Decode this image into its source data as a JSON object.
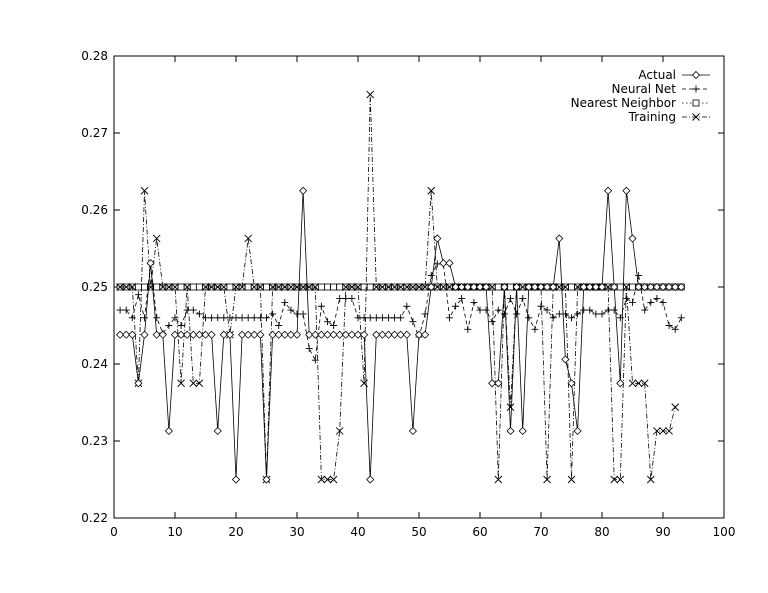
{
  "chart_data": {
    "type": "line",
    "title": "",
    "xlabel": "",
    "ylabel": "",
    "xlim": [
      0,
      100
    ],
    "ylim": [
      0.22,
      0.28
    ],
    "xticks": [
      0,
      10,
      20,
      30,
      40,
      50,
      60,
      70,
      80,
      90,
      100
    ],
    "yticks": [
      0.22,
      0.23,
      0.24,
      0.25,
      0.26,
      0.27,
      0.28
    ],
    "xtick_labels": [
      "0",
      "10",
      "20",
      "30",
      "40",
      "50",
      "60",
      "70",
      "80",
      "90",
      "100"
    ],
    "ytick_labels": [
      "0.22",
      "0.23",
      "0.24",
      "0.25",
      "0.26",
      "0.27",
      "0.28"
    ],
    "grid": false,
    "legend_position": "top-right",
    "series": [
      {
        "name": "Actual",
        "marker": "diamond",
        "dash": "solid",
        "x": [
          1,
          2,
          3,
          4,
          5,
          6,
          7,
          8,
          9,
          10,
          11,
          12,
          13,
          14,
          15,
          16,
          17,
          18,
          19,
          20,
          21,
          22,
          23,
          24,
          25,
          26,
          27,
          28,
          29,
          30,
          31,
          32,
          33,
          34,
          35,
          36,
          37,
          38,
          39,
          40,
          41,
          42,
          43,
          44,
          45,
          46,
          47,
          48,
          49,
          50,
          51,
          52,
          53,
          54,
          55,
          56,
          57,
          58,
          59,
          60,
          61,
          62,
          63,
          64,
          65,
          66,
          67,
          68,
          69,
          70,
          71,
          72,
          73,
          74,
          75,
          76,
          77,
          78,
          79,
          80,
          81,
          82,
          83,
          84,
          85,
          86,
          87,
          88,
          89,
          90,
          91,
          92,
          93
        ],
        "y": [
          0.2438,
          0.2438,
          0.2438,
          0.2375,
          0.2438,
          0.2531,
          0.2438,
          0.2438,
          0.2313,
          0.2438,
          0.2438,
          0.2438,
          0.2438,
          0.2438,
          0.2438,
          0.2438,
          0.2313,
          0.2438,
          0.2438,
          0.225,
          0.2438,
          0.2438,
          0.2438,
          0.2438,
          0.225,
          0.2438,
          0.2438,
          0.2438,
          0.2438,
          0.2438,
          0.2625,
          0.2438,
          0.2438,
          0.2438,
          0.2438,
          0.2438,
          0.2438,
          0.2438,
          0.2438,
          0.2438,
          0.2438,
          0.225,
          0.2438,
          0.2438,
          0.2438,
          0.2438,
          0.2438,
          0.2438,
          0.2313,
          0.2438,
          0.2438,
          0.25,
          0.2563,
          0.2531,
          0.2531,
          0.25,
          0.25,
          0.25,
          0.25,
          0.25,
          0.25,
          0.2375,
          0.2375,
          0.25,
          0.2313,
          0.25,
          0.2313,
          0.25,
          0.25,
          0.25,
          0.25,
          0.25,
          0.2563,
          0.2406,
          0.2375,
          0.2313,
          0.25,
          0.25,
          0.25,
          0.25,
          0.2625,
          0.25,
          0.2375,
          0.2625,
          0.2563,
          0.25,
          0.25,
          0.25,
          0.25,
          0.25,
          0.25,
          0.25,
          0.25
        ]
      },
      {
        "name": "Neural Net",
        "marker": "plus",
        "dash": "dashed",
        "x": [
          1,
          2,
          3,
          4,
          5,
          6,
          7,
          8,
          9,
          10,
          11,
          12,
          13,
          14,
          15,
          16,
          17,
          18,
          19,
          20,
          21,
          22,
          23,
          24,
          25,
          26,
          27,
          28,
          29,
          30,
          31,
          32,
          33,
          34,
          35,
          36,
          37,
          38,
          39,
          40,
          41,
          42,
          43,
          44,
          45,
          46,
          47,
          48,
          49,
          50,
          51,
          52,
          53,
          54,
          55,
          56,
          57,
          58,
          59,
          60,
          61,
          62,
          63,
          64,
          65,
          66,
          67,
          68,
          69,
          70,
          71,
          72,
          73,
          74,
          75,
          76,
          77,
          78,
          79,
          80,
          81,
          82,
          83,
          84,
          85,
          86,
          87,
          88,
          89,
          90,
          91,
          92,
          93
        ],
        "y": [
          0.247,
          0.247,
          0.246,
          0.249,
          0.246,
          0.253,
          0.246,
          0.244,
          0.245,
          0.246,
          0.245,
          0.247,
          0.247,
          0.2465,
          0.246,
          0.246,
          0.246,
          0.246,
          0.246,
          0.246,
          0.246,
          0.246,
          0.246,
          0.246,
          0.246,
          0.2465,
          0.245,
          0.248,
          0.247,
          0.2465,
          0.2465,
          0.242,
          0.2405,
          0.2475,
          0.2455,
          0.245,
          0.2485,
          0.2485,
          0.2485,
          0.246,
          0.246,
          0.246,
          0.246,
          0.246,
          0.246,
          0.246,
          0.246,
          0.2475,
          0.2455,
          0.2435,
          0.2465,
          0.2515,
          0.253,
          0.253,
          0.246,
          0.2475,
          0.2485,
          0.2445,
          0.248,
          0.247,
          0.247,
          0.2455,
          0.247,
          0.2465,
          0.2485,
          0.2465,
          0.2485,
          0.246,
          0.2445,
          0.2475,
          0.247,
          0.246,
          0.2465,
          0.2465,
          0.246,
          0.2465,
          0.247,
          0.247,
          0.2465,
          0.2465,
          0.247,
          0.247,
          0.246,
          0.2485,
          0.248,
          0.2515,
          0.247,
          0.248,
          0.2485,
          0.248,
          0.245,
          0.2445,
          0.246
        ]
      },
      {
        "name": "Nearest Neighbor",
        "marker": "square",
        "dash": "dotted",
        "x": [
          1,
          2,
          3,
          4,
          5,
          6,
          7,
          8,
          9,
          10,
          11,
          12,
          13,
          14,
          15,
          16,
          17,
          18,
          19,
          20,
          21,
          22,
          23,
          24,
          25,
          26,
          27,
          28,
          29,
          30,
          31,
          32,
          33,
          34,
          35,
          36,
          37,
          38,
          39,
          40,
          41,
          42,
          43,
          44,
          45,
          46,
          47,
          48,
          49,
          50,
          51,
          52,
          53,
          54,
          55,
          56,
          57,
          58,
          59,
          60,
          61,
          62,
          63,
          64,
          65,
          66,
          67,
          68,
          69,
          70,
          71,
          72,
          73,
          74,
          75,
          76,
          77,
          78,
          79,
          80,
          81,
          82,
          83,
          84,
          85,
          86,
          87,
          88,
          89,
          90,
          91,
          92,
          93
        ],
        "y": [
          0.25,
          0.25,
          0.25,
          0.25,
          0.25,
          0.25,
          0.25,
          0.25,
          0.25,
          0.25,
          0.25,
          0.25,
          0.25,
          0.25,
          0.25,
          0.25,
          0.25,
          0.25,
          0.25,
          0.25,
          0.25,
          0.25,
          0.25,
          0.25,
          0.25,
          0.25,
          0.25,
          0.25,
          0.25,
          0.25,
          0.25,
          0.25,
          0.25,
          0.25,
          0.25,
          0.25,
          0.25,
          0.25,
          0.25,
          0.25,
          0.25,
          0.25,
          0.25,
          0.25,
          0.25,
          0.25,
          0.25,
          0.25,
          0.25,
          0.25,
          0.25,
          0.25,
          0.25,
          0.25,
          0.25,
          0.25,
          0.25,
          0.25,
          0.25,
          0.25,
          0.25,
          0.25,
          0.25,
          0.25,
          0.25,
          0.25,
          0.25,
          0.25,
          0.25,
          0.25,
          0.25,
          0.25,
          0.25,
          0.25,
          0.25,
          0.25,
          0.25,
          0.25,
          0.25,
          0.25,
          0.25,
          0.25,
          0.25,
          0.25,
          0.25,
          0.25,
          0.25,
          0.25,
          0.25,
          0.25,
          0.25,
          0.25,
          0.25
        ]
      },
      {
        "name": "Training",
        "marker": "cross",
        "dash": "dashdot",
        "x": [
          1,
          2,
          3,
          4,
          5,
          6,
          7,
          8,
          9,
          10,
          11,
          12,
          13,
          14,
          15,
          16,
          17,
          18,
          19,
          20,
          21,
          22,
          23,
          24,
          25,
          26,
          27,
          28,
          29,
          30,
          31,
          32,
          33,
          34,
          35,
          36,
          37,
          38,
          39,
          40,
          41,
          42,
          43,
          44,
          45,
          46,
          47,
          48,
          49,
          50,
          51,
          52,
          53,
          54,
          55,
          56,
          57,
          58,
          59,
          60,
          61,
          62,
          63,
          64,
          65,
          66,
          67,
          68,
          69,
          70,
          71,
          72,
          73,
          74,
          75,
          76,
          77,
          78,
          79,
          80,
          81,
          82,
          83,
          84,
          85,
          86,
          87,
          88,
          89,
          90,
          91,
          92
        ],
        "y": [
          0.25,
          0.25,
          0.25,
          0.2375,
          0.2625,
          0.25,
          0.2563,
          0.25,
          0.25,
          0.25,
          0.2375,
          0.25,
          0.2375,
          0.2375,
          0.25,
          0.25,
          0.25,
          0.25,
          0.2438,
          0.25,
          0.25,
          0.2563,
          0.25,
          0.25,
          0.225,
          0.25,
          0.25,
          0.25,
          0.25,
          0.25,
          0.25,
          0.25,
          0.25,
          0.225,
          0.225,
          0.225,
          0.2313,
          0.25,
          0.25,
          0.25,
          0.2375,
          0.275,
          0.25,
          0.25,
          0.25,
          0.25,
          0.25,
          0.25,
          0.25,
          0.25,
          0.25,
          0.2625,
          0.25,
          0.25,
          0.25,
          0.25,
          0.25,
          0.25,
          0.25,
          0.25,
          0.25,
          0.25,
          0.225,
          0.25,
          0.2344,
          0.25,
          0.25,
          0.25,
          0.25,
          0.25,
          0.225,
          0.25,
          0.25,
          0.25,
          0.225,
          0.25,
          0.25,
          0.25,
          0.25,
          0.25,
          0.25,
          0.225,
          0.225,
          0.25,
          0.2375,
          0.2375,
          0.2375,
          0.225,
          0.2313,
          0.2313,
          0.2313,
          0.2344
        ]
      }
    ]
  }
}
